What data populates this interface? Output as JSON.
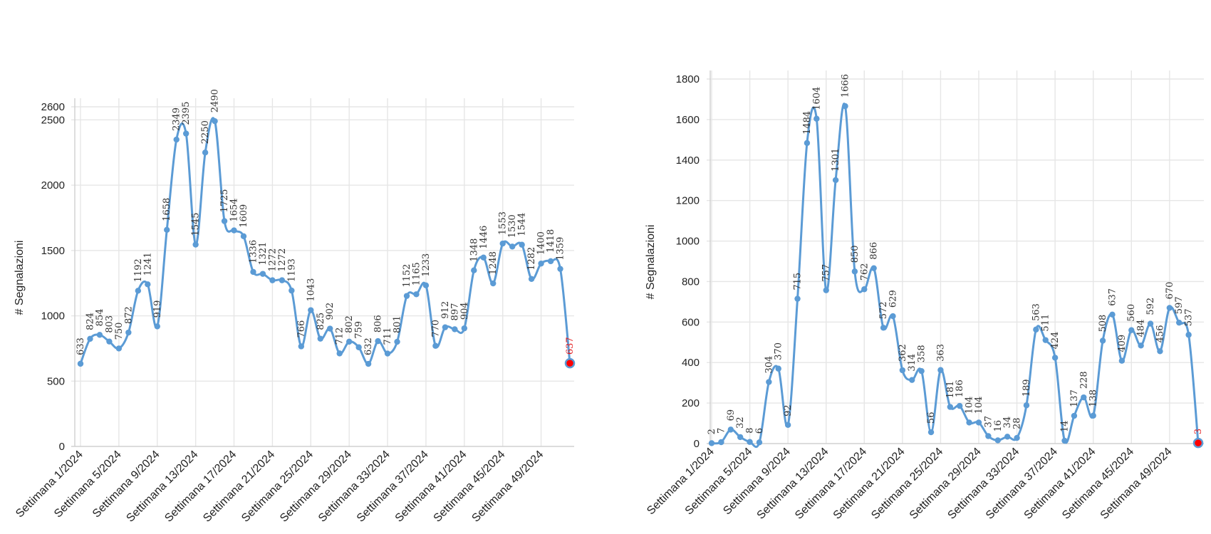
{
  "chart_data": [
    {
      "type": "line",
      "title": "",
      "xlabel": "",
      "ylabel": "# Segnalazioni",
      "ylim": [
        0,
        2600
      ],
      "yticks": [
        0,
        500,
        1000,
        1500,
        2000,
        2500,
        2600
      ],
      "xticks": [
        "Settimana 1/2024",
        "Settimana 5/2024",
        "Settimana 9/2024",
        "Settimana 13/2024",
        "Settimana 17/2024",
        "Settimana 21/2024",
        "Settimana 25/2024",
        "Settimana 29/2024",
        "Settimana 33/2024",
        "Settimana 37/2024",
        "Settimana 41/2024",
        "Settimana 45/2024",
        "Settimana 49/2024"
      ],
      "grid": true,
      "colors": {
        "line": "#5b9bd5",
        "last_point": "#ff0000",
        "last_label": "#e31a1c"
      },
      "values": [
        633,
        824,
        854,
        803,
        750,
        872,
        1192,
        1241,
        919,
        1658,
        2349,
        2395,
        1545,
        2250,
        2490,
        1725,
        1654,
        1609,
        1336,
        1321,
        1272,
        1272,
        1193,
        766,
        1043,
        825,
        902,
        712,
        802,
        759,
        632,
        806,
        711,
        801,
        1152,
        1165,
        1233,
        770,
        912,
        897,
        904,
        1348,
        1446,
        1248,
        1553,
        1530,
        1544,
        1282,
        1400,
        1418,
        1359,
        637
      ]
    },
    {
      "type": "line",
      "title": "",
      "xlabel": "",
      "ylabel": "# Segnalazioni",
      "ylim": [
        0,
        1800
      ],
      "yticks": [
        0,
        200,
        400,
        600,
        800,
        1000,
        1200,
        1400,
        1600,
        1800
      ],
      "xticks": [
        "Settimana 1/2024",
        "Settimana 5/2024",
        "Settimana 9/2024",
        "Settimana 13/2024",
        "Settimana 17/2024",
        "Settimana 21/2024",
        "Settimana 25/2024",
        "Settimana 29/2024",
        "Settimana 33/2024",
        "Settimana 37/2024",
        "Settimana 41/2024",
        "Settimana 45/2024",
        "Settimana 49/2024"
      ],
      "grid": true,
      "colors": {
        "line": "#5b9bd5",
        "last_point": "#ff0000",
        "last_label": "#e31a1c"
      },
      "values": [
        2,
        7,
        69,
        32,
        8,
        6,
        304,
        370,
        92,
        715,
        1484,
        1604,
        757,
        1301,
        1666,
        850,
        762,
        866,
        572,
        629,
        362,
        314,
        358,
        56,
        363,
        181,
        186,
        104,
        104,
        37,
        16,
        34,
        28,
        189,
        563,
        511,
        424,
        14,
        137,
        228,
        138,
        508,
        637,
        409,
        560,
        484,
        592,
        456,
        670,
        597,
        537,
        3
      ]
    }
  ]
}
